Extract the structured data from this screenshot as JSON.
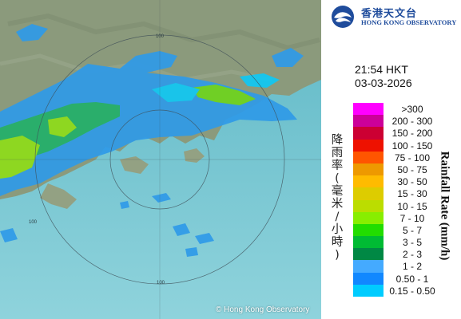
{
  "header": {
    "logo_cn": "香港天文台",
    "logo_en": "HONG KONG OBSERVATORY"
  },
  "timestamp": {
    "time": "21:54 HKT",
    "date": "03-03-2026"
  },
  "legend": {
    "title_cn": "降雨率(毫米/小時)",
    "title_en": "Rainfall Rate (mm/h)",
    "items": [
      {
        "label": ">300",
        "color": "#ff00ff"
      },
      {
        "label": "200 - 300",
        "color": "#cc0099"
      },
      {
        "label": "150 - 200",
        "color": "#cc0033"
      },
      {
        "label": "100 - 150",
        "color": "#ee1100"
      },
      {
        "label": "75 - 100",
        "color": "#ff5500"
      },
      {
        "label": "50 - 75",
        "color": "#ee9900"
      },
      {
        "label": "30 - 50",
        "color": "#ffbb00"
      },
      {
        "label": "15 - 30",
        "color": "#ddcc00"
      },
      {
        "label": "10 - 15",
        "color": "#bbdd00"
      },
      {
        "label": "7 - 10",
        "color": "#88ee00"
      },
      {
        "label": "5 - 7",
        "color": "#22dd00"
      },
      {
        "label": "3 - 5",
        "color": "#00bb33"
      },
      {
        "label": "2 - 3",
        "color": "#008844"
      },
      {
        "label": "1 - 2",
        "color": "#44aaff"
      },
      {
        "label": "0.50 - 1",
        "color": "#1188ff"
      },
      {
        "label": "0.15 - 0.50",
        "color": "#00ccff"
      }
    ]
  },
  "map": {
    "range_ring_label": "100",
    "copyright": "© Hong Kong Observatory",
    "sea_color": "#7fcad6",
    "land_color": "#8c9a7e"
  }
}
